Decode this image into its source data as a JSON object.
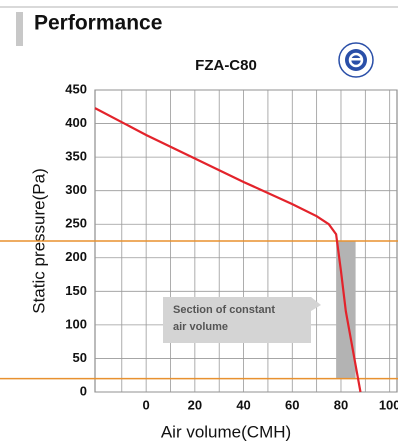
{
  "header": "Performance",
  "chart_data": {
    "type": "line",
    "title": "FZA-C80",
    "x_label": "Air volume(CMH)",
    "y_label": "Static pressure(Pa)",
    "x": [
      -21,
      0,
      20,
      40,
      60,
      70,
      75,
      78,
      80,
      82,
      85,
      88
    ],
    "series": [
      {
        "name": "FZA-C80",
        "color": "#e3232b",
        "values": [
          423,
          383,
          348,
          313,
          280,
          262,
          250,
          235,
          180,
          120,
          60,
          0
        ]
      }
    ],
    "xlim": [
      -21,
      103
    ],
    "ylim": [
      0,
      450
    ],
    "xticks": [
      0,
      20,
      40,
      60,
      80,
      100
    ],
    "x_minor_grid": [
      -10,
      10,
      30,
      50,
      70,
      90
    ],
    "yticks": [
      0,
      50,
      100,
      150,
      200,
      250,
      300,
      350,
      400,
      450
    ],
    "grid": true,
    "hlines": [
      {
        "value": 225,
        "color": "#e8912f"
      },
      {
        "value": 20,
        "color": "#e8912f"
      }
    ],
    "band": {
      "x": [
        78,
        86
      ],
      "y": [
        20,
        225
      ],
      "color": "#b3b3b3"
    },
    "annotation": [
      "Section of constant",
      "air volume"
    ]
  }
}
